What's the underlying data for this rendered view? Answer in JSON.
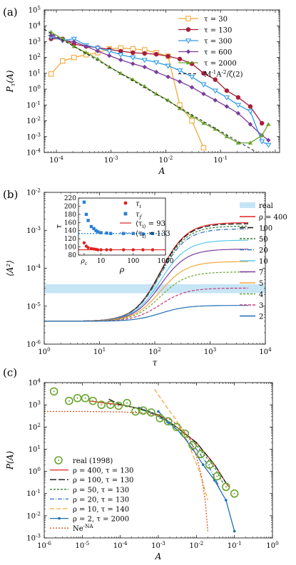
{
  "chart_data": [
    {
      "panel": "(a)",
      "type": "line",
      "xlabel": "A",
      "ylabel": "P_τ(A)",
      "xscale": "log",
      "yscale": "log",
      "xlim": [
        6e-05,
        1.2
      ],
      "ylim": [
        0.0001,
        100000
      ],
      "x_tick_labels": [
        "10^{-4}",
        "10^{-3}",
        "10^{-2}",
        "10^{-1}"
      ],
      "y_tick_labels": [
        "10^{-4}",
        "10^{-3}",
        "10^{-2}",
        "10^{-1}",
        "10^{0}",
        "10^{1}",
        "10^{2}",
        "10^{3}",
        "10^{4}",
        "10^{5}"
      ],
      "legend_position": "top-right",
      "series": [
        {
          "name": "τ = 30",
          "color": "#f2a93b",
          "marker": "square-open",
          "x": [
            8e-05,
            0.00013,
            0.00021,
            0.00035,
            0.00057,
            0.00093,
            0.0015,
            0.0025,
            0.0041,
            0.0067,
            0.011,
            0.018,
            0.03,
            0.049
          ],
          "y": [
            9,
            60,
            100,
            150,
            200,
            350,
            400,
            350,
            300,
            200,
            120,
            0.1,
            0.01,
            0.0002
          ]
        },
        {
          "name": "τ = 130",
          "color": "#a51f3a",
          "marker": "circle",
          "x": [
            8e-05,
            0.00013,
            0.00021,
            0.00035,
            0.00057,
            0.00093,
            0.0015,
            0.0025,
            0.0041,
            0.0067,
            0.011,
            0.018,
            0.03,
            0.049,
            0.08,
            0.13,
            0.21,
            0.35,
            0.57
          ],
          "y": [
            1500,
            1500,
            700,
            500,
            420,
            320,
            250,
            200,
            180,
            160,
            120,
            80,
            40,
            10,
            4,
            0.8,
            0.3,
            0.08,
            0.007
          ]
        },
        {
          "name": "τ = 300",
          "color": "#2f9bea",
          "marker": "triangle-down-open",
          "x": [
            8e-05,
            0.00013,
            0.00021,
            0.00035,
            0.00057,
            0.00093,
            0.0015,
            0.0025,
            0.0041,
            0.0067,
            0.011,
            0.018,
            0.03,
            0.049,
            0.08,
            0.13,
            0.21,
            0.35,
            0.57,
            0.75
          ],
          "y": [
            2000,
            1200,
            1500,
            600,
            400,
            250,
            150,
            100,
            70,
            50,
            30,
            15,
            6,
            2,
            0.8,
            0.3,
            0.1,
            0.04,
            0.0005,
            0.0003
          ]
        },
        {
          "name": "τ = 600",
          "color": "#7b3d9c",
          "marker": "diamond",
          "x": [
            8e-05,
            0.00013,
            0.00021,
            0.00035,
            0.00057,
            0.00093,
            0.0015,
            0.0025,
            0.0041,
            0.0067,
            0.011,
            0.018,
            0.03,
            0.049,
            0.08,
            0.13,
            0.21,
            0.35,
            0.57,
            0.75
          ],
          "y": [
            2500,
            1200,
            1000,
            500,
            250,
            130,
            70,
            40,
            25,
            12,
            6,
            3,
            1.3,
            0.5,
            0.2,
            0.08,
            0.03,
            0.006,
            0.0012,
            0.0006
          ]
        },
        {
          "name": "τ = 2000",
          "color": "#6aa52e",
          "marker": "triangle-up",
          "x": [
            8e-05,
            0.00013,
            0.00021,
            0.00035,
            0.00057,
            0.00093,
            0.0015,
            0.0025,
            0.0041,
            0.0067,
            0.011,
            0.018,
            0.03,
            0.049,
            0.08,
            0.13,
            0.21,
            0.35,
            0.57,
            0.75
          ],
          "y": [
            4000,
            1500,
            500,
            200,
            80,
            25,
            10,
            4,
            1.5,
            0.5,
            0.2,
            0.06,
            0.02,
            0.007,
            0.003,
            0.001,
            0.0004,
            0.0004,
            0.0012,
            0.006
          ]
        },
        {
          "name": "M^{-1}A^{-2}/ζ(2)",
          "color": "#222222",
          "dash": true,
          "x": [
            6e-05,
            1.2
          ],
          "y": [
            6000,
            1.5e-05
          ]
        }
      ]
    },
    {
      "panel": "(b)",
      "type": "line",
      "xlabel": "τ",
      "ylabel": "⟨A²⟩",
      "xscale": "log",
      "yscale": "log",
      "xlim": [
        1,
        10000
      ],
      "ylim": [
        1e-06,
        0.01
      ],
      "x_tick_labels": [
        "10^{0}",
        "10^{1}",
        "10^{2}",
        "10^{3}",
        "10^{4}"
      ],
      "y_tick_labels": [
        "10^{-6}",
        "10^{-5}",
        "10^{-4}",
        "10^{-3}",
        "10^{-2}"
      ],
      "legend_position": "right",
      "real_band": {
        "label": "real",
        "ymin": 2.2e-05,
        "ymax": 3.8e-05,
        "color": "#c6e5f6"
      },
      "series": [
        {
          "name": "ρ = 400",
          "color": "#e02020",
          "plateau": 0.0016
        },
        {
          "name": "100",
          "color": "#111111",
          "dash": "8,3",
          "plateau": 0.0015
        },
        {
          "name": "50",
          "color": "#2f7d32",
          "dash": "3,2",
          "plateau": 0.0013
        },
        {
          "name": "20",
          "color": "#2a6db8",
          "dash": "6,2,1,2",
          "plateau": 0.0011
        },
        {
          "name": "10",
          "color": "#5bc8e8",
          "plateau": 0.00055
        },
        {
          "name": "7",
          "color": "#7b3d9c",
          "plateau": 0.00032
        },
        {
          "name": "5",
          "color": "#f2a93b",
          "plateau": 0.00015
        },
        {
          "name": "4",
          "color": "#6aa52e",
          "dash": "3,2",
          "plateau": 8e-05
        },
        {
          "name": "3",
          "color": "#c73a7a",
          "dash": "4,2",
          "plateau": 3e-05
        },
        {
          "name": "2",
          "color": "#1f6fb5",
          "plateau": 1.05e-05
        }
      ],
      "inset": {
        "xlabel": "ρ",
        "ylabel": "τ",
        "xscale": "log",
        "xlim": [
          2,
          1000
        ],
        "ylim": [
          80,
          220
        ],
        "x_tick_labels": [
          "ρ_c",
          "10",
          "100",
          "1000"
        ],
        "y_tick_labels": [
          "80",
          "100",
          "120",
          "140",
          "160",
          "180",
          "200",
          "220"
        ],
        "tau_i": {
          "name": "τ_i",
          "color": "#e02020",
          "x": [
            3,
            3.5,
            4,
            5,
            6,
            7,
            8,
            10,
            15,
            20,
            50,
            100,
            200,
            400
          ],
          "y": [
            110,
            102,
            98,
            96,
            95,
            94,
            93,
            93,
            93,
            93,
            93,
            93,
            93,
            93
          ]
        },
        "tau_f": {
          "name": "τ_f",
          "color": "#2a7fd4",
          "x": [
            3,
            3.5,
            4,
            5,
            6,
            7,
            8,
            10,
            15,
            20,
            50,
            100,
            200,
            400
          ],
          "y": [
            210,
            180,
            165,
            150,
            145,
            140,
            137,
            135,
            134,
            133,
            133,
            133,
            132,
            133
          ]
        },
        "mean_i": {
          "label": "⟨τ_i⟩ = 93",
          "value": 93
        },
        "mean_f": {
          "label": "⟨τ_f⟩ = 133",
          "value": 133
        }
      }
    },
    {
      "panel": "(c)",
      "type": "line",
      "xlabel": "A",
      "ylabel": "P(A)",
      "xscale": "log",
      "yscale": "log",
      "xlim": [
        1e-06,
        1
      ],
      "ylim": [
        0.001,
        10000
      ],
      "x_tick_labels": [
        "10^{-6}",
        "10^{-5}",
        "10^{-4}",
        "10^{-3}",
        "10^{-2}",
        "10^{-1}",
        "10^{0}"
      ],
      "y_tick_labels": [
        "10^{-3}",
        "10^{-2}",
        "10^{-1}",
        "10^{0}",
        "10^{1}",
        "10^{2}",
        "10^{3}",
        "10^{4}"
      ],
      "legend_position": "bottom-left",
      "real": {
        "name": "real (1998)",
        "color": "#6aa52e",
        "x": [
          1.8e-06,
          4.5e-06,
          7.5e-06,
          1.2e-05,
          1.9e-05,
          3.2e-05,
          5.5e-05,
          9e-05,
          0.00015,
          0.00025,
          0.0004,
          0.00065,
          0.0011,
          0.0018,
          0.003,
          0.005,
          0.008,
          0.013,
          0.022,
          0.035,
          0.06,
          0.1
        ],
        "y": [
          4000,
          1500,
          2000,
          2000,
          1500,
          1000,
          1000,
          900,
          1200,
          500,
          550,
          450,
          250,
          180,
          100,
          50,
          15,
          6,
          2,
          0.6,
          0.2,
          0.1
        ]
      },
      "series": [
        {
          "name": "ρ = 400, τ = 130",
          "color": "#e02020",
          "x": [
            1.5e-05,
            4e-05,
            0.0001,
            0.0003,
            0.001,
            0.003,
            0.01,
            0.03,
            0.07
          ],
          "y": [
            1500,
            1200,
            1000,
            700,
            350,
            100,
            20,
            2,
            0.2
          ]
        },
        {
          "name": "ρ = 100, τ = 130",
          "color": "#111111",
          "dash": "9,3",
          "x": [
            5e-05,
            0.0001,
            0.0003,
            0.001,
            0.003,
            0.01,
            0.03,
            0.06
          ],
          "y": [
            1800,
            1000,
            700,
            350,
            100,
            20,
            2,
            0.3
          ]
        },
        {
          "name": "ρ = 50, τ = 130",
          "color": "#2f7d32",
          "dash": "3,2",
          "x": [
            8e-05,
            0.0002,
            0.0005,
            0.001,
            0.003,
            0.01,
            0.03,
            0.05
          ],
          "y": [
            1200,
            800,
            500,
            300,
            100,
            15,
            1.5,
            0.3
          ]
        },
        {
          "name": "ρ = 20, τ = 130",
          "color": "#2a6db8",
          "dash": "6,2,1,2",
          "x": [
            0.0003,
            0.0006,
            0.001,
            0.003,
            0.01,
            0.02,
            0.04
          ],
          "y": [
            800,
            500,
            300,
            80,
            10,
            2,
            0.2
          ]
        },
        {
          "name": "ρ = 10, τ = 140",
          "color": "#f2a93b",
          "dash": "6,3",
          "x": [
            0.0008,
            0.0015,
            0.003,
            0.006,
            0.012,
            0.02
          ],
          "y": [
            5000,
            1000,
            200,
            20,
            1,
            0.05
          ]
        },
        {
          "name": "ρ = 2, τ = 2000",
          "color": "#1f6fb5",
          "marker": "dot",
          "x": [
            0.001,
            0.002,
            0.004,
            0.008,
            0.015,
            0.03,
            0.06,
            0.1
          ],
          "y": [
            500,
            150,
            50,
            10,
            2,
            0.4,
            0.05,
            0.002
          ]
        },
        {
          "name": "Ne^{-NA}",
          "color": "#e0502a",
          "dash": "2,2",
          "x": [
            1e-06,
            1e-05,
            0.0001,
            0.0004,
            0.001,
            0.002,
            0.004,
            0.007,
            0.01,
            0.014,
            0.017,
            0.02
          ],
          "y": [
            500,
            500,
            480,
            430,
            330,
            220,
            100,
            25,
            5,
            0.5,
            0.05,
            0.002
          ]
        }
      ]
    }
  ]
}
